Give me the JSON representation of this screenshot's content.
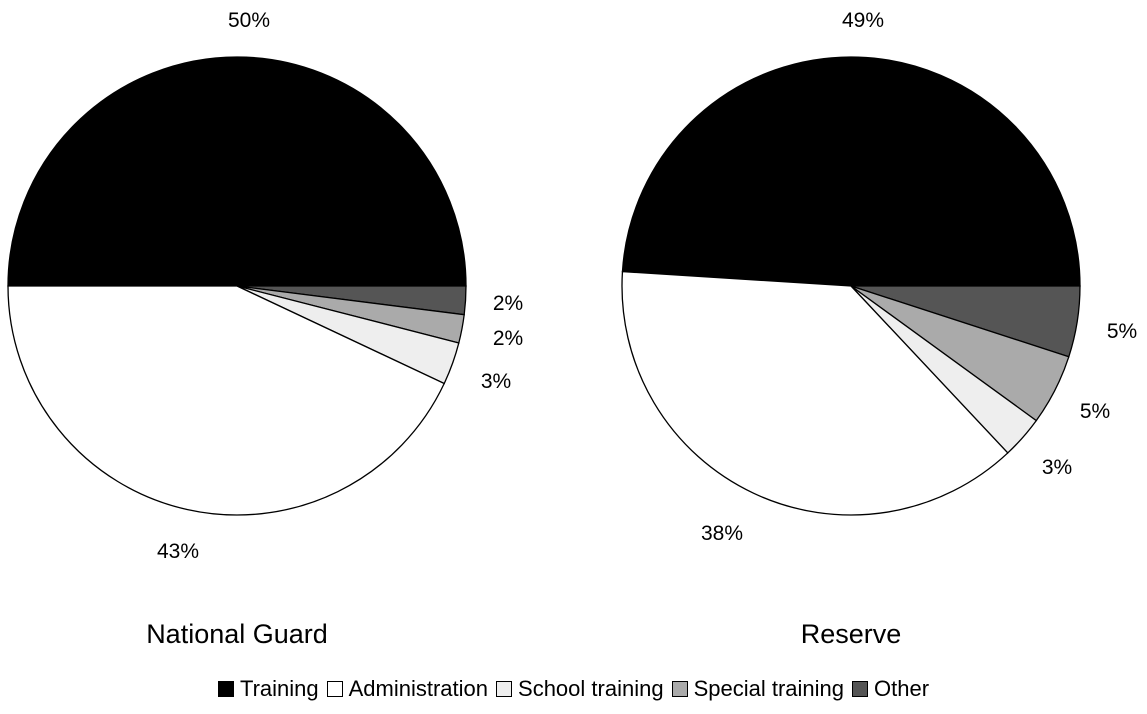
{
  "chart_data": {
    "type": "pie",
    "categories": [
      "Training",
      "Administration",
      "School training",
      "Special training",
      "Other"
    ],
    "colors": {
      "Training": "#000000",
      "Administration": "#ffffff",
      "School training": "#eeeeee",
      "Special training": "#aaaaaa",
      "Other": "#555555"
    },
    "legend_position": "bottom-center",
    "charts": [
      {
        "title": "National Guard",
        "values": [
          50,
          43,
          3,
          2,
          2
        ],
        "value_labels": [
          "50%",
          "43%",
          "3%",
          "2%",
          "2%"
        ]
      },
      {
        "title": "Reserve",
        "values": [
          49,
          38,
          3,
          5,
          5
        ],
        "value_labels": [
          "49%",
          "38%",
          "3%",
          "5%",
          "5%"
        ]
      }
    ]
  }
}
